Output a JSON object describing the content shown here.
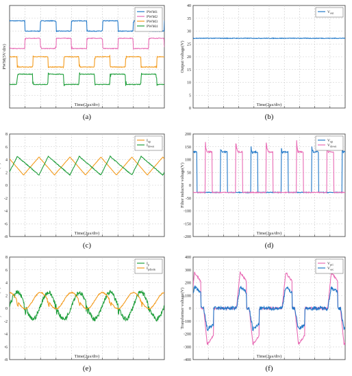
{
  "colors": {
    "blue": "#1f77c8",
    "pink": "#e86ab4",
    "orange": "#f39a1b",
    "green": "#1e9e3a",
    "grid": "#c9c9c9",
    "axis": "#333333"
  },
  "chart_data": [
    {
      "id": "a",
      "panel_label": "(a)",
      "type": "line",
      "title": "",
      "xlabel": "Time(2μs/div)",
      "ylabel": "PWM(5V/div)",
      "show_yticks": false,
      "x_divisions": 10,
      "y_divisions": 8,
      "grid": true,
      "legend_position": "top-right",
      "series": [
        {
          "name": "PWM1",
          "color_key": "blue",
          "kind": "pwm",
          "high": 0.85,
          "low": 0.75,
          "phase": 0.0,
          "duty": 0.5,
          "spike": 0.02
        },
        {
          "name": "PWM2",
          "color_key": "pink",
          "kind": "pwm",
          "high": 0.68,
          "low": 0.58,
          "phase": 0.5,
          "duty": 0.5,
          "spike": 0.03
        },
        {
          "name": "PWM3",
          "color_key": "orange",
          "kind": "pwm",
          "high": 0.5,
          "low": 0.4,
          "phase": 0.25,
          "duty": 0.5,
          "spike": 0.03
        },
        {
          "name": "PWM4",
          "color_key": "green",
          "kind": "pwm",
          "high": 0.33,
          "low": 0.23,
          "phase": 0.75,
          "duty": 0.5,
          "spike": 0.06
        }
      ],
      "period_divisions": 2.0
    },
    {
      "id": "b",
      "panel_label": "(b)",
      "type": "line",
      "title": "",
      "xlabel": "Time(2μs/div)",
      "ylabel": "Output voltage(V)",
      "ylim": [
        0,
        40
      ],
      "yticks": [
        0,
        5,
        10,
        15,
        20,
        25,
        30,
        35,
        40
      ],
      "x_divisions": 10,
      "grid": true,
      "legend_position": "top-right",
      "series": [
        {
          "name": "Vout",
          "name_main": "V",
          "name_sub": "out",
          "color_key": "blue",
          "kind": "constant",
          "value": 27.2,
          "noise": 0.25
        }
      ]
    },
    {
      "id": "c",
      "panel_label": "(c)",
      "type": "line",
      "title": "",
      "xlabel": "Time(2μs/div)",
      "ylabel": "Filter inductor current(A)",
      "ylim": [
        -8,
        8
      ],
      "yticks": [
        -8,
        -6,
        -4,
        -2,
        0,
        2,
        4,
        6,
        8
      ],
      "x_divisions": 10,
      "grid": true,
      "legend_position": "top-right",
      "period_divisions": 2.0,
      "series": [
        {
          "name": "Iup",
          "name_main": "I",
          "name_sub": "up",
          "color_key": "orange",
          "kind": "triangle",
          "max": 4.4,
          "min": 1.6,
          "rise_fraction": 0.5,
          "phase": 0.55,
          "noise": 0.05
        },
        {
          "name": "Idown",
          "name_main": "I",
          "name_sub": "down",
          "color_key": "green",
          "kind": "triangle",
          "max": 4.5,
          "min": 1.6,
          "rise_fraction": 0.3,
          "phase": 0.05,
          "noise": 0.12
        }
      ]
    },
    {
      "id": "d",
      "panel_label": "(d)",
      "type": "line",
      "title": "",
      "xlabel": "Time(2μs/div)",
      "ylabel": "Filter inductor voltage(V)",
      "ylim": [
        -200,
        200
      ],
      "yticks": [
        -200,
        -150,
        -100,
        -50,
        0,
        50,
        100,
        150,
        200
      ],
      "x_divisions": 10,
      "grid": true,
      "legend_position": "top-right",
      "period_divisions": 2.0,
      "series": [
        {
          "name": "Vup",
          "name_main": "V",
          "name_sub": "up",
          "color_key": "blue",
          "kind": "pulse",
          "high": 130,
          "low": -28,
          "phase": 0.1,
          "duty": 0.22,
          "peak": 150
        },
        {
          "name": "Vdown",
          "name_main": "V",
          "name_sub": "down",
          "color_key": "pink",
          "kind": "pulse",
          "high": 130,
          "low": -28,
          "phase": 0.6,
          "duty": 0.22,
          "peak": 178
        }
      ]
    },
    {
      "id": "e",
      "panel_label": "(e)",
      "type": "line",
      "title": "",
      "xlabel": "Time(2μs/div)",
      "ylabel": "Primary side current(A)",
      "ylim": [
        -8,
        8
      ],
      "yticks": [
        -8,
        -6,
        -4,
        -2,
        0,
        2,
        4,
        6,
        8
      ],
      "x_divisions": 10,
      "grid": true,
      "legend_position": "top-right",
      "period_divisions": 2.0,
      "series": [
        {
          "name": "Ip",
          "name_main": "I",
          "name_sub": "p",
          "color_key": "green",
          "kind": "ripple",
          "amp": 2.3,
          "offset": 0.4,
          "phase": 0.0,
          "noise": 0.35
        },
        {
          "name": "Ipdiode",
          "name_main": "I",
          "name_sub": "pdiode",
          "color_key": "orange",
          "kind": "ripple",
          "amp": 1.4,
          "offset": 1.2,
          "phase": 0.25,
          "noise": 0.08
        }
      ]
    },
    {
      "id": "f",
      "panel_label": "(f)",
      "type": "line",
      "title": "",
      "xlabel": "Time(2μs/div)",
      "ylabel": "Transformer voltage(V)",
      "ylim": [
        -400,
        400
      ],
      "yticks": [
        -400,
        -300,
        -200,
        -100,
        0,
        100,
        200,
        300,
        400
      ],
      "x_divisions": 10,
      "grid": true,
      "legend_position": "top-right",
      "period_divisions": 3.0,
      "series": [
        {
          "name": "Vpri",
          "name_main": "V",
          "name_sub": "pri",
          "color_key": "pink",
          "kind": "ac",
          "amp": 280,
          "phase": 0.05,
          "noise": 8
        },
        {
          "name": "Vsec",
          "name_main": "V",
          "name_sub": "sec",
          "color_key": "blue",
          "kind": "ac",
          "amp": 165,
          "phase": 0.05,
          "noise": 14
        }
      ]
    }
  ]
}
